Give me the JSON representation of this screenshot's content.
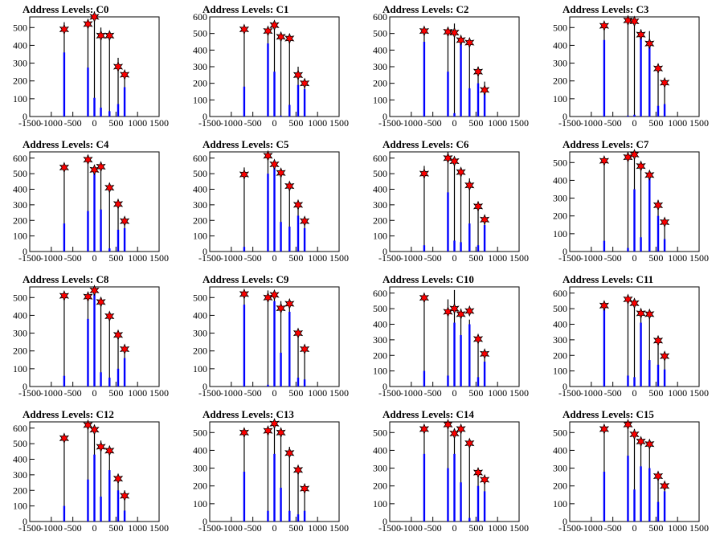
{
  "colors": {
    "hist_line": "#000000",
    "fill_bar": "#0000ff",
    "star_fill": "#ff0000",
    "star_edge": "#000000",
    "axis": "#000000"
  },
  "marker_icon": "red-star-marker",
  "chart_data": [
    {
      "type": "bar",
      "title": "Address Levels: C0",
      "xlim": [
        -1500,
        1500
      ],
      "ylim": [
        0,
        560
      ],
      "xticks": [
        -1500,
        -1000,
        -500,
        0,
        500,
        1000,
        1500
      ],
      "yticks": [
        0,
        100,
        200,
        300,
        400,
        500
      ],
      "peaks": [
        {
          "x": -700,
          "hist": 530,
          "fill": 360,
          "marker": 490
        },
        {
          "x": -150,
          "hist": 500,
          "fill": 275,
          "marker": 520
        },
        {
          "x": 0,
          "hist": 590,
          "fill": 105,
          "marker": 560
        },
        {
          "x": 150,
          "hist": 500,
          "fill": 50,
          "marker": 455
        },
        {
          "x": 350,
          "hist": 460,
          "fill": 30,
          "marker": 455
        },
        {
          "x": 550,
          "hist": 330,
          "fill": 70,
          "marker": 280
        },
        {
          "x": 700,
          "hist": 220,
          "fill": 165,
          "marker": 235
        }
      ]
    },
    {
      "type": "bar",
      "title": "Address Levels: C1",
      "xlim": [
        -1500,
        1500
      ],
      "ylim": [
        0,
        600
      ],
      "xticks": [
        -1500,
        -1000,
        -500,
        0,
        500,
        1000,
        1500
      ],
      "yticks": [
        0,
        100,
        200,
        300,
        400,
        500,
        600
      ],
      "peaks": [
        {
          "x": -700,
          "hist": 540,
          "fill": 180,
          "marker": 525
        },
        {
          "x": -150,
          "hist": 540,
          "fill": 440,
          "marker": 515
        },
        {
          "x": 0,
          "hist": 570,
          "fill": 270,
          "marker": 550
        },
        {
          "x": 150,
          "hist": 500,
          "fill": 5,
          "marker": 480
        },
        {
          "x": 350,
          "hist": 470,
          "fill": 70,
          "marker": 470
        },
        {
          "x": 550,
          "hist": 300,
          "fill": 190,
          "marker": 250
        },
        {
          "x": 700,
          "hist": 210,
          "fill": 165,
          "marker": 200
        }
      ]
    },
    {
      "type": "bar",
      "title": "Address Levels: C2",
      "xlim": [
        -1500,
        1500
      ],
      "ylim": [
        0,
        600
      ],
      "xticks": [
        -1500,
        -1000,
        -500,
        0,
        500,
        1000,
        1500
      ],
      "yticks": [
        0,
        100,
        200,
        300,
        400,
        500,
        600
      ],
      "peaks": [
        {
          "x": -700,
          "hist": 540,
          "fill": 450,
          "marker": 515
        },
        {
          "x": -150,
          "hist": 520,
          "fill": 270,
          "marker": 510
        },
        {
          "x": 0,
          "hist": 560,
          "fill": 20,
          "marker": 505
        },
        {
          "x": 150,
          "hist": 470,
          "fill": 470,
          "marker": 460
        },
        {
          "x": 350,
          "hist": 440,
          "fill": 170,
          "marker": 445
        },
        {
          "x": 550,
          "hist": 300,
          "fill": 200,
          "marker": 270
        },
        {
          "x": 700,
          "hist": 210,
          "fill": 170,
          "marker": 160
        }
      ]
    },
    {
      "type": "bar",
      "title": "Address Levels: C3",
      "xlim": [
        -1500,
        1500
      ],
      "ylim": [
        0,
        560
      ],
      "xticks": [
        -1500,
        -1000,
        -500,
        0,
        500,
        1000,
        1500
      ],
      "yticks": [
        0,
        100,
        200,
        300,
        400,
        500
      ],
      "peaks": [
        {
          "x": -700,
          "hist": 530,
          "fill": 430,
          "marker": 510
        },
        {
          "x": -150,
          "hist": 560,
          "fill": 5,
          "marker": 540
        },
        {
          "x": 0,
          "hist": 560,
          "fill": 10,
          "marker": 535
        },
        {
          "x": 150,
          "hist": 490,
          "fill": 480,
          "marker": 460
        },
        {
          "x": 350,
          "hist": 480,
          "fill": 400,
          "marker": 410
        },
        {
          "x": 550,
          "hist": 280,
          "fill": 60,
          "marker": 270
        },
        {
          "x": 700,
          "hist": 210,
          "fill": 70,
          "marker": 190
        }
      ]
    },
    {
      "type": "bar",
      "title": "Address Levels: C4",
      "xlim": [
        -1500,
        1500
      ],
      "ylim": [
        0,
        640
      ],
      "xticks": [
        -1500,
        -1000,
        -500,
        0,
        500,
        1000,
        1500
      ],
      "yticks": [
        0,
        100,
        200,
        300,
        400,
        500,
        600
      ],
      "peaks": [
        {
          "x": -700,
          "hist": 560,
          "fill": 180,
          "marker": 540
        },
        {
          "x": -150,
          "hist": 620,
          "fill": 260,
          "marker": 590
        },
        {
          "x": 0,
          "hist": 550,
          "fill": 520,
          "marker": 525
        },
        {
          "x": 150,
          "hist": 570,
          "fill": 270,
          "marker": 545
        },
        {
          "x": 350,
          "hist": 440,
          "fill": 20,
          "marker": 410
        },
        {
          "x": 550,
          "hist": 300,
          "fill": 140,
          "marker": 305
        },
        {
          "x": 700,
          "hist": 200,
          "fill": 150,
          "marker": 195
        }
      ]
    },
    {
      "type": "bar",
      "title": "Address Levels: C5",
      "xlim": [
        -1500,
        1500
      ],
      "ylim": [
        0,
        640
      ],
      "xticks": [
        -1500,
        -1000,
        -500,
        0,
        500,
        1000,
        1500
      ],
      "yticks": [
        0,
        100,
        200,
        300,
        400,
        500,
        600
      ],
      "peaks": [
        {
          "x": -700,
          "hist": 540,
          "fill": 30,
          "marker": 495
        },
        {
          "x": -150,
          "hist": 640,
          "fill": 500,
          "marker": 615
        },
        {
          "x": 0,
          "hist": 580,
          "fill": 580,
          "marker": 560
        },
        {
          "x": 150,
          "hist": 520,
          "fill": 190,
          "marker": 505
        },
        {
          "x": 350,
          "hist": 440,
          "fill": 160,
          "marker": 420
        },
        {
          "x": 550,
          "hist": 310,
          "fill": 230,
          "marker": 300
        },
        {
          "x": 700,
          "hist": 210,
          "fill": 150,
          "marker": 195
        }
      ]
    },
    {
      "type": "bar",
      "title": "Address Levels: C6",
      "xlim": [
        -1500,
        1500
      ],
      "ylim": [
        0,
        640
      ],
      "xticks": [
        -1500,
        -1000,
        -500,
        0,
        500,
        1000,
        1500
      ],
      "yticks": [
        0,
        100,
        200,
        300,
        400,
        500,
        600
      ],
      "peaks": [
        {
          "x": -700,
          "hist": 550,
          "fill": 40,
          "marker": 500
        },
        {
          "x": -150,
          "hist": 640,
          "fill": 380,
          "marker": 600
        },
        {
          "x": 0,
          "hist": 580,
          "fill": 70,
          "marker": 580
        },
        {
          "x": 150,
          "hist": 520,
          "fill": 60,
          "marker": 510
        },
        {
          "x": 350,
          "hist": 470,
          "fill": 180,
          "marker": 425
        },
        {
          "x": 550,
          "hist": 310,
          "fill": 40,
          "marker": 290
        },
        {
          "x": 700,
          "hist": 230,
          "fill": 170,
          "marker": 205
        }
      ]
    },
    {
      "type": "bar",
      "title": "Address Levels: C7",
      "xlim": [
        -1500,
        1500
      ],
      "ylim": [
        0,
        560
      ],
      "xticks": [
        -1500,
        -1000,
        -500,
        0,
        500,
        1000,
        1500
      ],
      "yticks": [
        0,
        100,
        200,
        300,
        400,
        500
      ],
      "peaks": [
        {
          "x": -700,
          "hist": 520,
          "fill": 60,
          "marker": 510
        },
        {
          "x": -150,
          "hist": 560,
          "fill": 20,
          "marker": 530
        },
        {
          "x": 0,
          "hist": 550,
          "fill": 350,
          "marker": 545
        },
        {
          "x": 150,
          "hist": 500,
          "fill": 80,
          "marker": 480
        },
        {
          "x": 350,
          "hist": 440,
          "fill": 430,
          "marker": 430
        },
        {
          "x": 550,
          "hist": 290,
          "fill": 200,
          "marker": 260
        },
        {
          "x": 700,
          "hist": 190,
          "fill": 70,
          "marker": 165
        }
      ]
    },
    {
      "type": "bar",
      "title": "Address Levels: C8",
      "xlim": [
        -1500,
        1500
      ],
      "ylim": [
        0,
        560
      ],
      "xticks": [
        -1500,
        -1000,
        -500,
        0,
        500,
        1000,
        1500
      ],
      "yticks": [
        0,
        100,
        200,
        300,
        400,
        500
      ],
      "peaks": [
        {
          "x": -700,
          "hist": 520,
          "fill": 60,
          "marker": 510
        },
        {
          "x": -150,
          "hist": 520,
          "fill": 380,
          "marker": 505
        },
        {
          "x": 0,
          "hist": 560,
          "fill": 520,
          "marker": 540
        },
        {
          "x": 150,
          "hist": 500,
          "fill": 80,
          "marker": 475
        },
        {
          "x": 350,
          "hist": 420,
          "fill": 50,
          "marker": 395
        },
        {
          "x": 550,
          "hist": 300,
          "fill": 100,
          "marker": 290
        },
        {
          "x": 700,
          "hist": 220,
          "fill": 160,
          "marker": 210
        }
      ]
    },
    {
      "type": "bar",
      "title": "Address Levels: C9",
      "xlim": [
        -1500,
        1500
      ],
      "ylim": [
        0,
        560
      ],
      "xticks": [
        -1500,
        -1000,
        -500,
        0,
        500,
        1000,
        1500
      ],
      "yticks": [
        0,
        100,
        200,
        300,
        400,
        500
      ],
      "peaks": [
        {
          "x": -700,
          "hist": 540,
          "fill": 460,
          "marker": 520
        },
        {
          "x": -150,
          "hist": 540,
          "fill": 10,
          "marker": 500
        },
        {
          "x": 0,
          "hist": 540,
          "fill": 480,
          "marker": 515
        },
        {
          "x": 150,
          "hist": 480,
          "fill": 190,
          "marker": 440
        },
        {
          "x": 350,
          "hist": 440,
          "fill": 420,
          "marker": 465
        },
        {
          "x": 550,
          "hist": 310,
          "fill": 50,
          "marker": 300
        },
        {
          "x": 700,
          "hist": 210,
          "fill": 40,
          "marker": 210
        }
      ]
    },
    {
      "type": "bar",
      "title": "Address Levels: C10",
      "xlim": [
        -1500,
        1500
      ],
      "ylim": [
        0,
        640
      ],
      "xticks": [
        -1500,
        -1000,
        -500,
        0,
        500,
        1000,
        1500
      ],
      "yticks": [
        0,
        100,
        200,
        300,
        400,
        500,
        600
      ],
      "peaks": [
        {
          "x": -700,
          "hist": 590,
          "fill": 100,
          "marker": 570
        },
        {
          "x": -150,
          "hist": 560,
          "fill": 70,
          "marker": 480
        },
        {
          "x": 0,
          "hist": 620,
          "fill": 410,
          "marker": 500
        },
        {
          "x": 150,
          "hist": 500,
          "fill": 330,
          "marker": 465
        },
        {
          "x": 350,
          "hist": 430,
          "fill": 400,
          "marker": 485
        },
        {
          "x": 550,
          "hist": 320,
          "fill": 60,
          "marker": 305
        },
        {
          "x": 700,
          "hist": 220,
          "fill": 160,
          "marker": 210
        }
      ]
    },
    {
      "type": "bar",
      "title": "Address Levels: C11",
      "xlim": [
        -1500,
        1500
      ],
      "ylim": [
        0,
        640
      ],
      "xticks": [
        -1500,
        -1000,
        -500,
        0,
        500,
        1000,
        1500
      ],
      "yticks": [
        0,
        100,
        200,
        300,
        400,
        500,
        600
      ],
      "peaks": [
        {
          "x": -700,
          "hist": 540,
          "fill": 500,
          "marker": 520
        },
        {
          "x": -150,
          "hist": 570,
          "fill": 70,
          "marker": 560
        },
        {
          "x": 0,
          "hist": 550,
          "fill": 60,
          "marker": 535
        },
        {
          "x": 150,
          "hist": 500,
          "fill": 410,
          "marker": 470
        },
        {
          "x": 350,
          "hist": 440,
          "fill": 170,
          "marker": 465
        },
        {
          "x": 550,
          "hist": 300,
          "fill": 140,
          "marker": 295
        },
        {
          "x": 700,
          "hist": 210,
          "fill": 110,
          "marker": 195
        }
      ]
    },
    {
      "type": "bar",
      "title": "Address Levels: C12",
      "xlim": [
        -1500,
        1500
      ],
      "ylim": [
        0,
        640
      ],
      "xticks": [
        -1500,
        -1000,
        -500,
        0,
        500,
        1000,
        1500
      ],
      "yticks": [
        0,
        100,
        200,
        300,
        400,
        500,
        600
      ],
      "peaks": [
        {
          "x": -700,
          "hist": 550,
          "fill": 100,
          "marker": 535
        },
        {
          "x": -150,
          "hist": 630,
          "fill": 270,
          "marker": 620
        },
        {
          "x": 0,
          "hist": 600,
          "fill": 430,
          "marker": 590
        },
        {
          "x": 150,
          "hist": 520,
          "fill": 160,
          "marker": 480
        },
        {
          "x": 350,
          "hist": 470,
          "fill": 330,
          "marker": 455
        },
        {
          "x": 550,
          "hist": 300,
          "fill": 200,
          "marker": 275
        },
        {
          "x": 700,
          "hist": 200,
          "fill": 70,
          "marker": 165
        }
      ]
    },
    {
      "type": "bar",
      "title": "Address Levels: C13",
      "xlim": [
        -1500,
        1500
      ],
      "ylim": [
        0,
        560
      ],
      "xticks": [
        -1500,
        -1000,
        -500,
        0,
        500,
        1000,
        1500
      ],
      "yticks": [
        0,
        100,
        200,
        300,
        400,
        500
      ],
      "peaks": [
        {
          "x": -700,
          "hist": 520,
          "fill": 280,
          "marker": 500
        },
        {
          "x": -150,
          "hist": 520,
          "fill": 60,
          "marker": 510
        },
        {
          "x": 0,
          "hist": 560,
          "fill": 380,
          "marker": 550
        },
        {
          "x": 150,
          "hist": 500,
          "fill": 190,
          "marker": 500
        },
        {
          "x": 350,
          "hist": 420,
          "fill": 60,
          "marker": 385
        },
        {
          "x": 550,
          "hist": 300,
          "fill": 40,
          "marker": 290
        },
        {
          "x": 700,
          "hist": 210,
          "fill": 60,
          "marker": 185
        }
      ]
    },
    {
      "type": "bar",
      "title": "Address Levels: C14",
      "xlim": [
        -1500,
        1500
      ],
      "ylim": [
        0,
        560
      ],
      "xticks": [
        -1500,
        -1000,
        -500,
        0,
        500,
        1000,
        1500
      ],
      "yticks": [
        0,
        100,
        200,
        300,
        400,
        500
      ],
      "peaks": [
        {
          "x": -700,
          "hist": 530,
          "fill": 380,
          "marker": 520
        },
        {
          "x": -150,
          "hist": 560,
          "fill": 300,
          "marker": 545
        },
        {
          "x": 0,
          "hist": 520,
          "fill": 380,
          "marker": 495
        },
        {
          "x": 150,
          "hist": 540,
          "fill": 220,
          "marker": 520
        },
        {
          "x": 350,
          "hist": 450,
          "fill": 20,
          "marker": 440
        },
        {
          "x": 550,
          "hist": 300,
          "fill": 200,
          "marker": 275
        },
        {
          "x": 700,
          "hist": 240,
          "fill": 170,
          "marker": 235
        }
      ]
    },
    {
      "type": "bar",
      "title": "Address Levels: C15",
      "xlim": [
        -1500,
        1500
      ],
      "ylim": [
        0,
        560
      ],
      "xticks": [
        -1500,
        -1000,
        -500,
        0,
        500,
        1000,
        1500
      ],
      "yticks": [
        0,
        100,
        200,
        300,
        400,
        500
      ],
      "peaks": [
        {
          "x": -700,
          "hist": 540,
          "fill": 280,
          "marker": 520
        },
        {
          "x": -150,
          "hist": 560,
          "fill": 370,
          "marker": 545
        },
        {
          "x": 0,
          "hist": 520,
          "fill": 180,
          "marker": 490
        },
        {
          "x": 150,
          "hist": 470,
          "fill": 310,
          "marker": 450
        },
        {
          "x": 350,
          "hist": 450,
          "fill": 300,
          "marker": 435
        },
        {
          "x": 550,
          "hist": 280,
          "fill": 110,
          "marker": 255
        },
        {
          "x": 700,
          "hist": 220,
          "fill": 170,
          "marker": 200
        }
      ]
    }
  ]
}
